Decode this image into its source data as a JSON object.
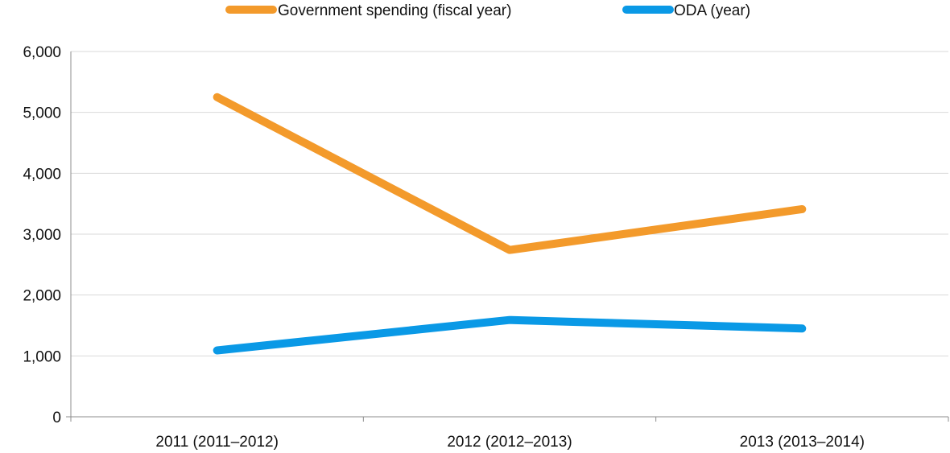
{
  "chart_data": {
    "type": "line",
    "categories": [
      "2011 (2011–2012)",
      "2012 (2012–2013)",
      "2013 (2013–2014)"
    ],
    "series": [
      {
        "name": "Government spending (fiscal year)",
        "values": [
          5250,
          2740,
          3410
        ],
        "color": "#F39A2B"
      },
      {
        "name": "ODA (year)",
        "values": [
          1090,
          1590,
          1450
        ],
        "color": "#0A99E6"
      }
    ],
    "ylim": [
      0,
      6000
    ],
    "yticks": [
      "0",
      "1,000",
      "2,000",
      "3,000",
      "4,000",
      "5,000",
      "6,000"
    ],
    "grid": true,
    "legend": "top-center",
    "title": "",
    "xlabel": "",
    "ylabel": ""
  }
}
